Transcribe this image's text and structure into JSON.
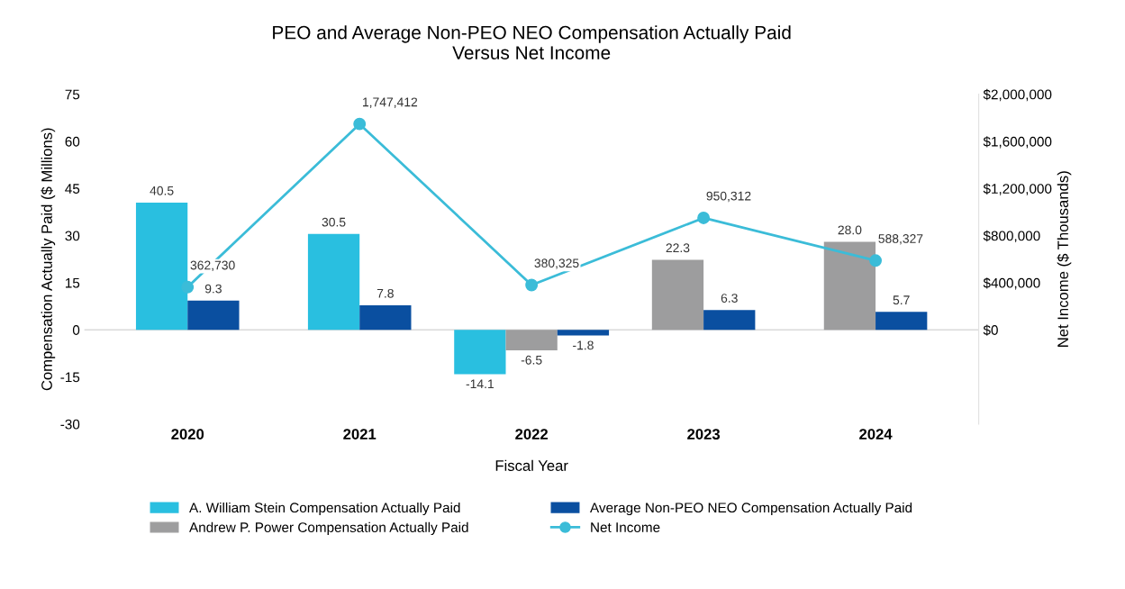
{
  "chart_data": {
    "type": "bar",
    "title": "PEO and Average Non-PEO NEO Compensation Actually Paid\nVersus Net Income",
    "xlabel": "Fiscal Year",
    "ylabel": "Compensation Actually Paid ($ Millions)",
    "y2label": "Net Income ($ Thousands)",
    "categories": [
      "2020",
      "2021",
      "2022",
      "2023",
      "2024"
    ],
    "series": [
      {
        "name": "A. William Stein Compensation Actually Paid",
        "color": "#29bfe0",
        "values": [
          40.5,
          30.5,
          -14.1,
          null,
          null
        ],
        "value_labels": [
          "40.5",
          "30.5",
          "-14.1",
          null,
          null
        ]
      },
      {
        "name": "Andrew P. Power Compensation Actually Paid",
        "color": "#9d9d9e",
        "values": [
          null,
          null,
          -6.5,
          22.3,
          28.0
        ],
        "value_labels": [
          null,
          null,
          "-6.5",
          "22.3",
          "28.0"
        ]
      },
      {
        "name": "Average Non-PEO NEO Compensation Actually Paid",
        "color": "#0a4fa0",
        "values": [
          9.3,
          7.8,
          -1.8,
          6.3,
          5.7
        ],
        "value_labels": [
          "9.3",
          "7.8",
          "-1.8",
          "6.3",
          "5.7"
        ]
      },
      {
        "name": "Net Income",
        "type": "line",
        "axis": "y2",
        "color": "#3bbcd8",
        "marker": "circle",
        "values": [
          362730,
          1747412,
          380325,
          950312,
          588327
        ],
        "value_labels": [
          "362,730",
          "1,747,412",
          "380,325",
          "950,312",
          "588,327"
        ]
      }
    ],
    "ylim": [
      -30,
      75
    ],
    "yticks": [
      -30,
      -15,
      0,
      15,
      30,
      45,
      60,
      75
    ],
    "y2lim": [
      -800000,
      2000000
    ],
    "y2ticks": [
      {
        "value": 0,
        "label": "$0"
      },
      {
        "value": 400000,
        "label": "$400,000"
      },
      {
        "value": 800000,
        "label": "$800,000"
      },
      {
        "value": 1200000,
        "label": "$1,200,000"
      },
      {
        "value": 1600000,
        "label": "$1,600,000"
      },
      {
        "value": 2000000,
        "label": "$2,000,000"
      }
    ],
    "ref_lines": [
      {
        "axis": "y",
        "value": 0,
        "color": "#d9d9d9"
      }
    ],
    "legend": "bottom"
  }
}
